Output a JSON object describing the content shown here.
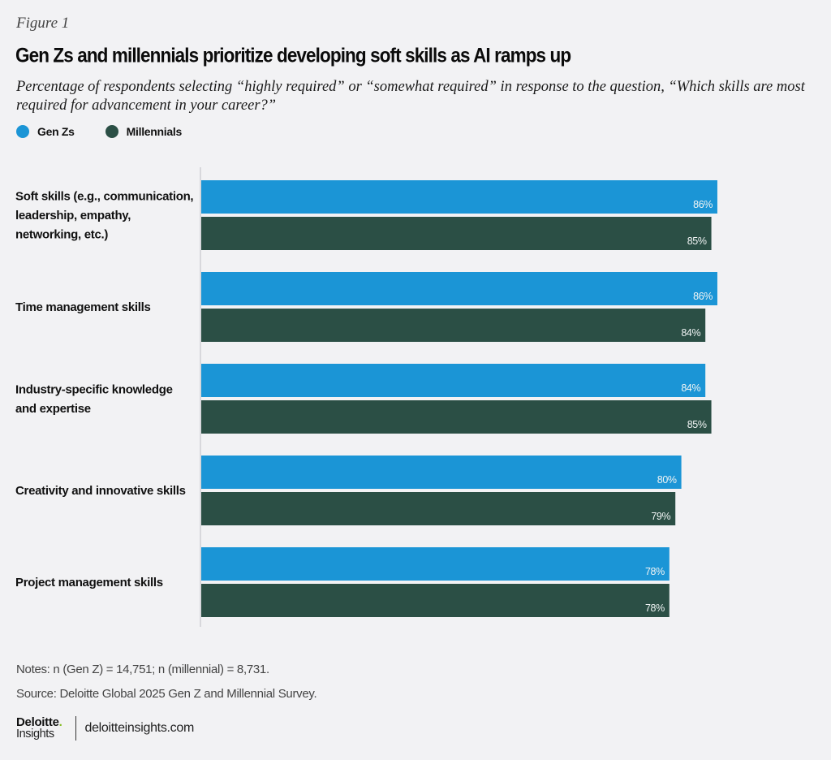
{
  "figure_label": "Figure 1",
  "title": "Gen Zs and millennials prioritize developing soft skills as AI ramps up",
  "subtitle": "Percentage of respondents selecting “highly required” or “somewhat required” in response to the question, “Which skills are most required for advancement in your career?”",
  "legend": [
    {
      "name": "Gen Zs",
      "color": "#1b95d6"
    },
    {
      "name": "Millennials",
      "color": "#2b4f45"
    }
  ],
  "chart_data": {
    "type": "bar",
    "orientation": "horizontal",
    "title": "Gen Zs and millennials prioritize developing soft skills as AI ramps up",
    "xlabel": "",
    "ylabel": "",
    "xlim": [
      0,
      100
    ],
    "grid": false,
    "legend_position": "top-left",
    "value_suffix": "%",
    "categories": [
      "Soft skills (e.g., communication, leadership, empathy, networking, etc.)",
      "Time management skills",
      "Industry-specific knowledge and expertise",
      "Creativity and innovative skills",
      "Project management skills"
    ],
    "category_lines": [
      [
        "Soft skills (e.g., communication,",
        "leadership, empathy,",
        "networking, etc.)"
      ],
      [
        "Time management skills"
      ],
      [
        "Industry-specific knowledge",
        "and expertise"
      ],
      [
        "Creativity and innovative skills"
      ],
      [
        "Project management skills"
      ]
    ],
    "series": [
      {
        "name": "Gen Zs",
        "color": "#1b95d6",
        "values": [
          86,
          86,
          84,
          80,
          78
        ]
      },
      {
        "name": "Millennials",
        "color": "#2b4f45",
        "values": [
          85,
          84,
          85,
          79,
          78
        ]
      }
    ]
  },
  "notes": "Notes: n (Gen Z) = 14,751; n (millennial) = 8,731.",
  "source": "Source: Deloitte Global 2025 Gen Z and Millennial Survey.",
  "brand": {
    "name": "Deloitte",
    "dot": ".",
    "sub": "Insights",
    "url": "deloitteinsights.com"
  }
}
